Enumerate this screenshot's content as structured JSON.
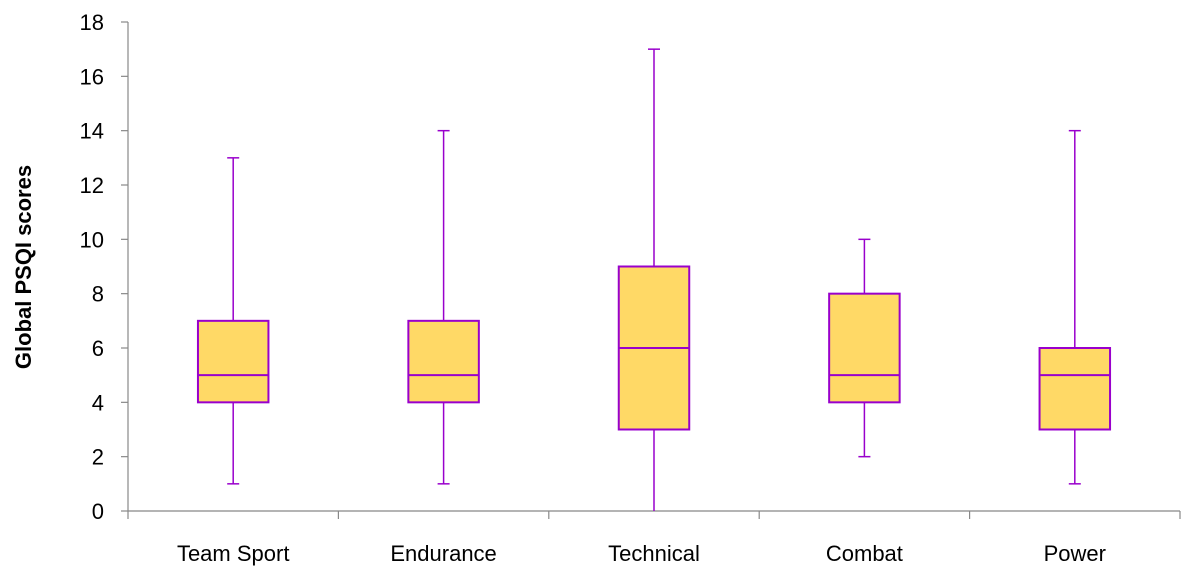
{
  "chart_data": {
    "type": "boxplot",
    "ylabel": "Global PSQI scores",
    "xlabel": "",
    "ylim": [
      0,
      18
    ],
    "yticks": [
      0,
      2,
      4,
      6,
      8,
      10,
      12,
      14,
      16,
      18
    ],
    "categories": [
      "Team Sport",
      "Endurance",
      "Technical",
      "Combat",
      "Power"
    ],
    "boxes": [
      {
        "category": "Team Sport",
        "min": 1,
        "q1": 4,
        "median": 5,
        "q3": 7,
        "max": 13
      },
      {
        "category": "Endurance",
        "min": 1,
        "q1": 4,
        "median": 5,
        "q3": 7,
        "max": 14
      },
      {
        "category": "Technical",
        "min": 0,
        "q1": 3,
        "median": 6,
        "q3": 9,
        "max": 17
      },
      {
        "category": "Combat",
        "min": 2,
        "q1": 4,
        "median": 5,
        "q3": 8,
        "max": 10
      },
      {
        "category": "Power",
        "min": 1,
        "q1": 3,
        "median": 5,
        "q3": 6,
        "max": 14
      }
    ],
    "colors": {
      "box_fill": "#FFD966",
      "box_stroke": "#9900CC",
      "axis": "#888888"
    },
    "grid": false,
    "legend": "none"
  }
}
